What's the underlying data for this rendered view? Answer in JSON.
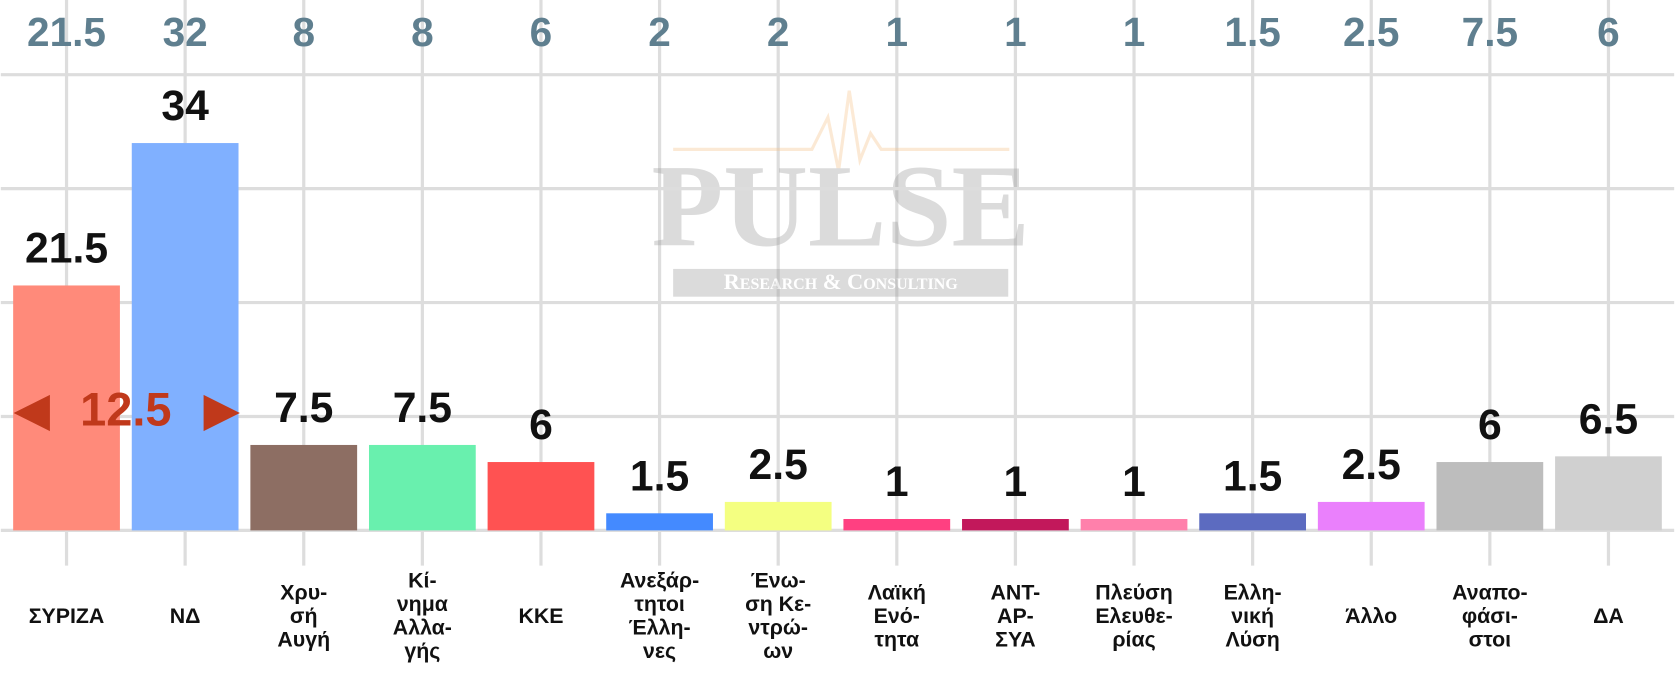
{
  "chart_data": {
    "type": "bar",
    "categories": [
      "ΣΥΡΙΖΑ",
      "ΝΔ",
      "Χρυ-\nσή\nΑυγή",
      "Κί-\nνημα\nΑλλα-\nγής",
      "ΚΚΕ",
      "Ανεξάρ-\nτητοι\nΈλλη-\nνες",
      "Ένω-\nση Κε-\nντρώ-\nων",
      "Λαϊκή\nΕνό-\nτητα",
      "ΑΝΤ-\nΑΡ-\nΣΥΑ",
      "Πλεύση\nΕλευθε-\nρίας",
      "Ελλη-\nνική\nΛύση",
      "Άλλο",
      "Αναπο-\nφάσι-\nστοι",
      "ΔΑ"
    ],
    "values": [
      21.5,
      34,
      7.5,
      7.5,
      6,
      1.5,
      2.5,
      1,
      1,
      1,
      1.5,
      2.5,
      6,
      6.5
    ],
    "previous_values": [
      21.5,
      32,
      8,
      8,
      6,
      2,
      2,
      1,
      1,
      1,
      1.5,
      2.5,
      7.5,
      6
    ],
    "colors": [
      "#ff8a7a",
      "#80b0ff",
      "#8d6e63",
      "#69f0ae",
      "#ff5252",
      "#448aff",
      "#f4ff81",
      "#ff4081",
      "#c2185b",
      "#ff80ab",
      "#5c6bc0",
      "#ea80fc",
      "#bdbdbd",
      "#d0d0d0"
    ],
    "lead": 12.5,
    "watermark": {
      "title": "PULSE",
      "subtitle": "Research & Consulting"
    },
    "ylim": [
      0,
      40
    ],
    "yticks": [
      0,
      10,
      20,
      30,
      40
    ],
    "grid": true
  }
}
